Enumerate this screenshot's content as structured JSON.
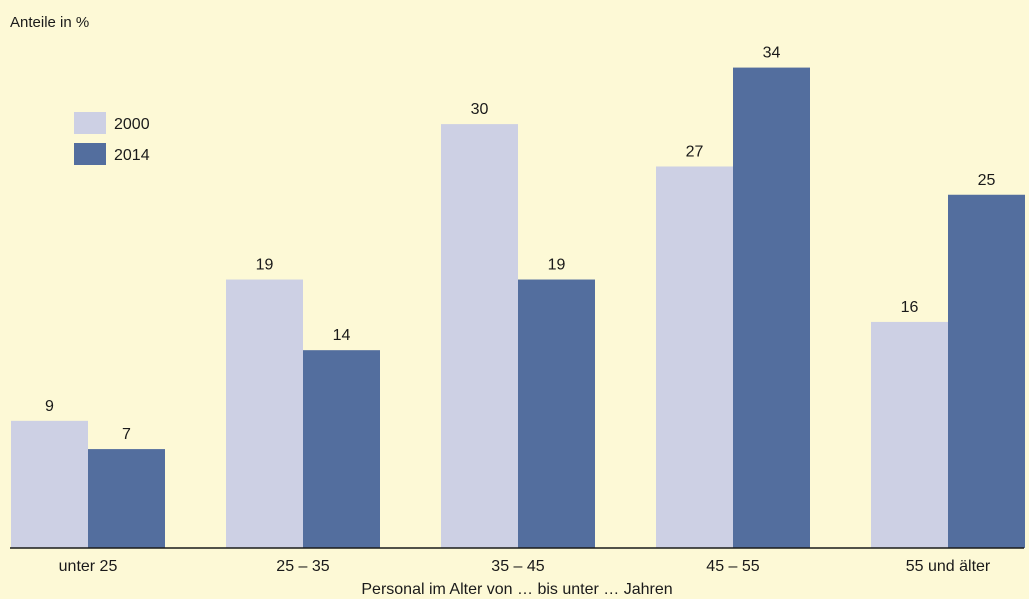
{
  "chart_data": {
    "type": "bar",
    "title": "",
    "ylabel": "Anteile in %",
    "xlabel": "Personal im Alter von … bis unter … Jahren",
    "categories": [
      "unter 25",
      "25 – 35",
      "35 – 45",
      "45 – 55",
      "55 und älter"
    ],
    "series": [
      {
        "name": "2000",
        "values": [
          9,
          19,
          30,
          27,
          16
        ],
        "color": "#cdd0e4"
      },
      {
        "name": "2014",
        "values": [
          7,
          14,
          19,
          34,
          25
        ],
        "color": "#536e9e"
      }
    ],
    "ylim": [
      0,
      36
    ],
    "grid": false,
    "legend_position": "top-left",
    "data_labels": true
  },
  "colors": {
    "background": "#fdf9d6",
    "axis": "#1a1a1a"
  }
}
